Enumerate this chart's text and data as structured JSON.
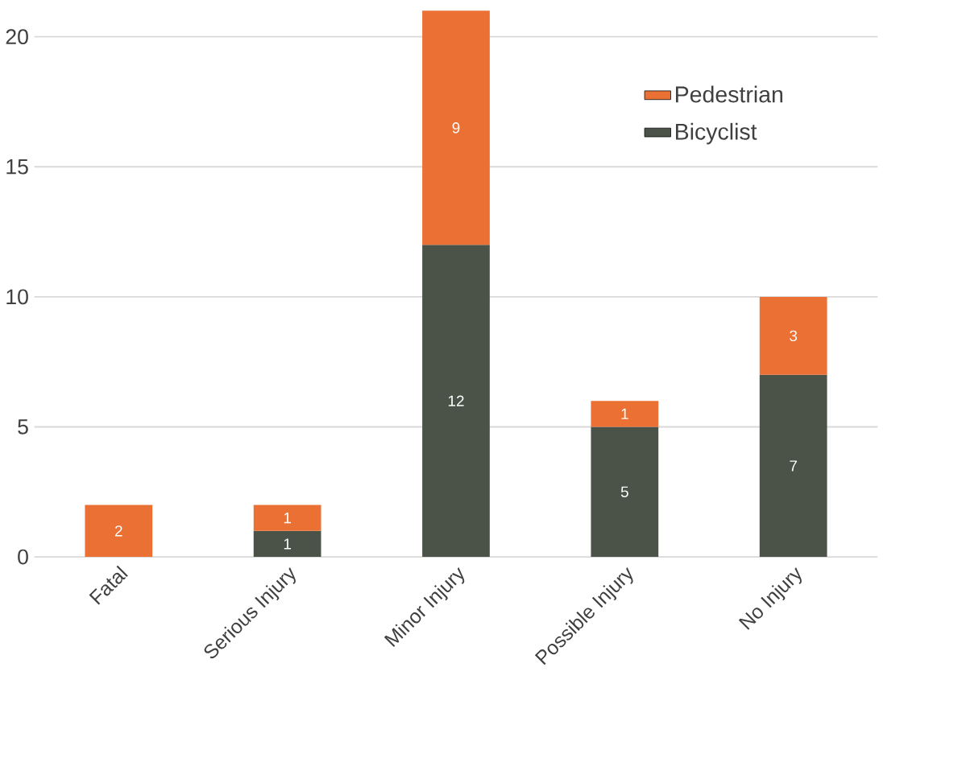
{
  "chart_data": {
    "type": "bar",
    "stacked": true,
    "categories": [
      "Fatal",
      "Serious Injury",
      "Minor Injury",
      "Possible Injury",
      "No Injury"
    ],
    "series": [
      {
        "name": "Bicyclist",
        "color": "#4b5348",
        "values": [
          null,
          1,
          12,
          5,
          7
        ]
      },
      {
        "name": "Pedestrian",
        "color": "#ea7034",
        "values": [
          2,
          1,
          9,
          1,
          3
        ]
      }
    ],
    "ylim": [
      0,
      21
    ],
    "yticks": [
      0,
      5,
      10,
      15,
      20
    ],
    "grid": "y",
    "legend": "top right",
    "data_labels": true
  }
}
